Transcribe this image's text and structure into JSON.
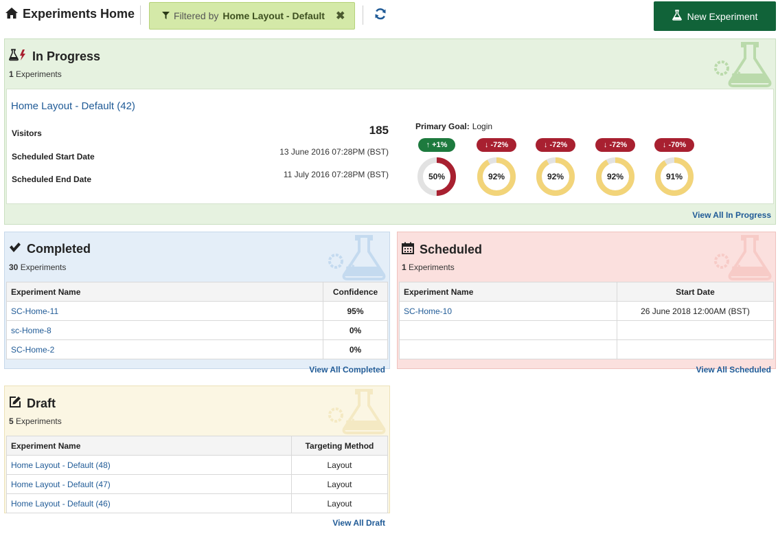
{
  "header": {
    "title": "Experiments Home",
    "filter_prefix": "Filtered by",
    "filter_value": "Home Layout - Default",
    "new_button": "New Experiment"
  },
  "in_progress": {
    "title": "In Progress",
    "count": "1",
    "count_suffix": "Experiments",
    "experiment_link": "Home Layout - Default (42)",
    "visitors_label": "Visitors",
    "visitors_value": "185",
    "start_label": "Scheduled Start Date",
    "start_value": "13 June 2016 07:28PM (BST)",
    "end_label": "Scheduled End Date",
    "end_value": "11 July 2016 07:28PM (BST)",
    "goal_label": "Primary Goal:",
    "goal_value": "Login",
    "metrics": [
      {
        "change": "+1%",
        "direction": "up",
        "confidence": "50%",
        "percent": 50,
        "ring_color": "#a82030"
      },
      {
        "change": "-72%",
        "direction": "down",
        "confidence": "92%",
        "percent": 92,
        "ring_color": "#f2d479"
      },
      {
        "change": "-72%",
        "direction": "down",
        "confidence": "92%",
        "percent": 92,
        "ring_color": "#f2d479"
      },
      {
        "change": "-72%",
        "direction": "down",
        "confidence": "92%",
        "percent": 92,
        "ring_color": "#f2d479"
      },
      {
        "change": "-70%",
        "direction": "down",
        "confidence": "91%",
        "percent": 91,
        "ring_color": "#f2d479"
      }
    ],
    "view_all": "View All In Progress"
  },
  "completed": {
    "title": "Completed",
    "count": "30",
    "count_suffix": "Experiments",
    "columns": [
      "Experiment Name",
      "Confidence"
    ],
    "rows": [
      [
        "SC-Home-11",
        "95%"
      ],
      [
        "sc-Home-8",
        "0%"
      ],
      [
        "SC-Home-2",
        "0%"
      ]
    ],
    "view_all": "View All Completed"
  },
  "scheduled": {
    "title": "Scheduled",
    "count": "1",
    "count_suffix": "Experiments",
    "columns": [
      "Experiment Name",
      "Start Date"
    ],
    "rows": [
      [
        "SC-Home-10",
        "26 June 2018 12:00AM (BST)"
      ],
      [
        "",
        ""
      ],
      [
        "",
        ""
      ]
    ],
    "view_all": "View All Scheduled"
  },
  "draft": {
    "title": "Draft",
    "count": "5",
    "count_suffix": "Experiments",
    "columns": [
      "Experiment Name",
      "Targeting Method"
    ],
    "rows": [
      [
        "Home Layout - Default (48)",
        "Layout"
      ],
      [
        "Home Layout - Default (47)",
        "Layout"
      ],
      [
        "Home Layout - Default (46)",
        "Layout"
      ]
    ],
    "view_all": "View All Draft"
  },
  "colors": {
    "primary_green": "#116339",
    "link_blue": "#1f5a96",
    "negative_red": "#a82030",
    "positive_green": "#1d7a3e",
    "ring_amber": "#f2d479"
  },
  "icons": [
    "home-icon",
    "filter-icon",
    "close-icon",
    "refresh-icon",
    "flask-icon",
    "check-icon",
    "calendar-icon",
    "edit-icon",
    "arrow-up-icon",
    "arrow-down-icon"
  ]
}
